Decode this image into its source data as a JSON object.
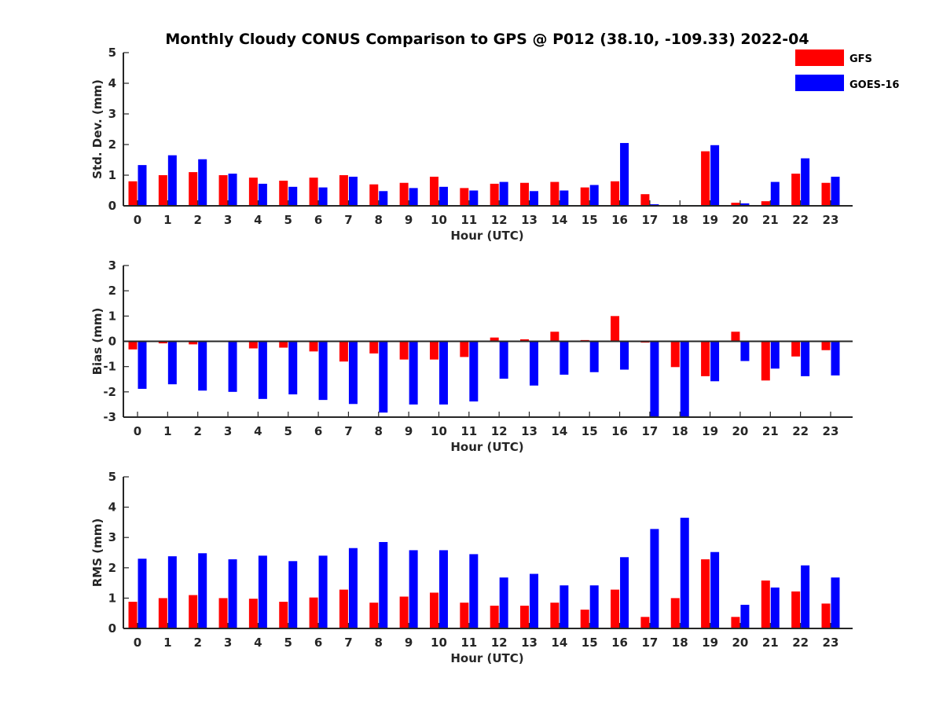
{
  "title": "Monthly Cloudy CONUS Comparison to GPS @ P012 (38.10, -109.33) 2022-04",
  "legend": {
    "placement": "top-right",
    "entries": [
      {
        "name": "GFS",
        "color": "#ff0000"
      },
      {
        "name": "GOES-16",
        "color": "#0000ff"
      }
    ]
  },
  "chart_data": [
    {
      "type": "bar",
      "xlabel": "Hour (UTC)",
      "ylabel": "Std. Dev. (mm)",
      "ylim": [
        0,
        5
      ],
      "yticks": [
        0,
        1,
        2,
        3,
        4,
        5
      ],
      "grid": false,
      "categories": [
        "0",
        "1",
        "2",
        "3",
        "4",
        "5",
        "6",
        "7",
        "8",
        "9",
        "10",
        "11",
        "12",
        "13",
        "14",
        "15",
        "16",
        "17",
        "18",
        "19",
        "20",
        "21",
        "22",
        "23"
      ],
      "series": [
        {
          "name": "GFS",
          "color": "#ff0000",
          "values": [
            0.8,
            1.0,
            1.1,
            1.0,
            0.92,
            0.82,
            0.92,
            1.0,
            0.7,
            0.75,
            0.95,
            0.58,
            0.72,
            0.75,
            0.78,
            0.6,
            0.8,
            0.38,
            0.0,
            1.78,
            0.1,
            0.15,
            1.05,
            0.75
          ]
        },
        {
          "name": "GOES-16",
          "color": "#0000ff",
          "values": [
            1.33,
            1.65,
            1.52,
            1.05,
            0.72,
            0.62,
            0.6,
            0.95,
            0.48,
            0.58,
            0.62,
            0.5,
            0.78,
            0.48,
            0.5,
            0.68,
            2.05,
            0.05,
            0.0,
            1.98,
            0.08,
            0.78,
            1.55,
            0.95
          ]
        }
      ]
    },
    {
      "type": "bar",
      "xlabel": "Hour (UTC)",
      "ylabel": "Bias (mm)",
      "ylim": [
        -3,
        3
      ],
      "yticks": [
        -3,
        -2,
        -1,
        0,
        1,
        2,
        3
      ],
      "grid": false,
      "categories": [
        "0",
        "1",
        "2",
        "3",
        "4",
        "5",
        "6",
        "7",
        "8",
        "9",
        "10",
        "11",
        "12",
        "13",
        "14",
        "15",
        "16",
        "17",
        "18",
        "19",
        "20",
        "21",
        "22",
        "23"
      ],
      "series": [
        {
          "name": "GFS",
          "color": "#ff0000",
          "values": [
            -0.32,
            -0.08,
            -0.12,
            0.0,
            -0.28,
            -0.25,
            -0.4,
            -0.8,
            -0.48,
            -0.72,
            -0.72,
            -0.62,
            0.15,
            0.08,
            0.38,
            0.05,
            1.0,
            -0.05,
            -1.02,
            -1.38,
            0.38,
            -1.55,
            -0.6,
            -0.35
          ]
        },
        {
          "name": "GOES-16",
          "color": "#0000ff",
          "values": [
            -1.88,
            -1.7,
            -1.95,
            -2.0,
            -2.28,
            -2.1,
            -2.32,
            -2.48,
            -2.82,
            -2.5,
            -2.5,
            -2.38,
            -1.48,
            -1.75,
            -1.32,
            -1.22,
            -1.12,
            -3.0,
            -3.0,
            -1.58,
            -0.78,
            -1.08,
            -1.38,
            -1.35
          ]
        }
      ]
    },
    {
      "type": "bar",
      "xlabel": "Hour (UTC)",
      "ylabel": "RMS (mm)",
      "ylim": [
        0,
        5
      ],
      "yticks": [
        0,
        1,
        2,
        3,
        4,
        5
      ],
      "grid": false,
      "categories": [
        "0",
        "1",
        "2",
        "3",
        "4",
        "5",
        "6",
        "7",
        "8",
        "9",
        "10",
        "11",
        "12",
        "13",
        "14",
        "15",
        "16",
        "17",
        "18",
        "19",
        "20",
        "21",
        "22",
        "23"
      ],
      "series": [
        {
          "name": "GFS",
          "color": "#ff0000",
          "values": [
            0.88,
            1.0,
            1.1,
            1.0,
            0.98,
            0.88,
            1.02,
            1.28,
            0.85,
            1.05,
            1.18,
            0.85,
            0.75,
            0.75,
            0.85,
            0.62,
            1.28,
            0.38,
            1.0,
            2.28,
            0.38,
            1.58,
            1.22,
            0.82
          ]
        },
        {
          "name": "GOES-16",
          "color": "#0000ff",
          "values": [
            2.3,
            2.38,
            2.48,
            2.28,
            2.4,
            2.22,
            2.4,
            2.65,
            2.85,
            2.58,
            2.58,
            2.45,
            1.68,
            1.8,
            1.42,
            1.42,
            2.35,
            3.28,
            3.65,
            2.52,
            0.78,
            1.35,
            2.08,
            1.68
          ]
        }
      ]
    }
  ]
}
